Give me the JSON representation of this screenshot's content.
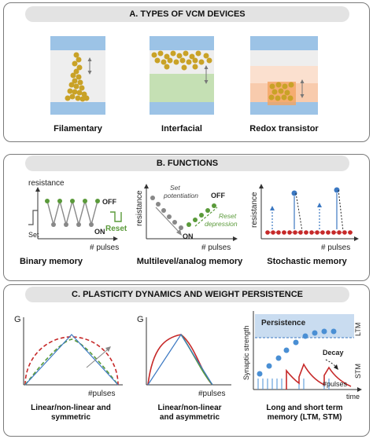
{
  "panelA": {
    "title": "A. TYPES OF VCM DEVICES",
    "devices": [
      "Filamentary",
      "Interfacial",
      "Redox transistor"
    ]
  },
  "panelB": {
    "title": "B. FUNCTIONS",
    "binary": {
      "ylabel": "resistance",
      "off": "OFF",
      "on": "ON",
      "set": "Set",
      "reset": "Reset",
      "xlabel": "# pulses",
      "caption": "Binary memory"
    },
    "multilevel": {
      "ylabel": "resistance",
      "set": "Set",
      "potentiation": "potentiation",
      "off": "OFF",
      "on": "ON",
      "reset": "Reset",
      "depression": "depression",
      "xlabel": "# pulses",
      "caption": "Multilevel/analog memory"
    },
    "stochastic": {
      "ylabel": "resistance",
      "xlabel": "# pulses",
      "caption": "Stochastic memory"
    }
  },
  "panelC": {
    "title": "C. PLASTICITY DYNAMICS AND WEIGHT PERSISTENCE",
    "symmetric": {
      "ylabel": "G",
      "xlabel": "#pulses",
      "caption1": "Linear/non-linear and",
      "caption2": "symmetric"
    },
    "asymmetric": {
      "ylabel": "G",
      "xlabel": "#pulses",
      "caption1": "Linear/non-linear",
      "caption2": "and asymmetric"
    },
    "memory": {
      "ylabel": "Synaptic strength",
      "persistence": "Persistence",
      "ltm": "LTM",
      "decay": "Decay",
      "stm": "STM",
      "xlabel": "#pulses",
      "time": "time",
      "caption1": "Long and short term",
      "caption2": "memory (LTM, STM)"
    }
  },
  "colors": {
    "gold": "#c9a227",
    "green": "#5a9a3a",
    "blue": "#3b78c2",
    "red": "#c62828",
    "panelTitle": "#e3e3e3"
  }
}
